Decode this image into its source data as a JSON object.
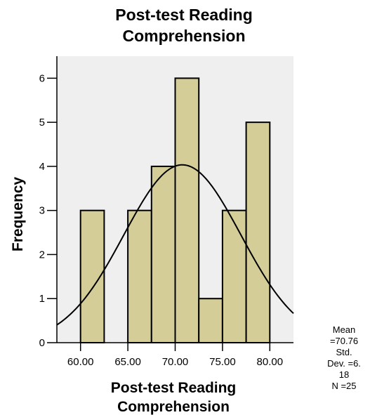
{
  "chart_data": {
    "type": "histogram",
    "title": [
      "Post-test Reading",
      "Comprehension"
    ],
    "xlabel": [
      "Post-test Reading",
      "Comprehension"
    ],
    "ylabel": "Frequency",
    "xlim": [
      57.5,
      82.5
    ],
    "ylim": [
      0,
      6.5
    ],
    "xticks": [
      60,
      65,
      70,
      75,
      80
    ],
    "xtick_labels": [
      "60.00",
      "65.00",
      "70.00",
      "75.00",
      "80.00"
    ],
    "yticks": [
      0,
      1,
      2,
      3,
      4,
      5,
      6
    ],
    "ytick_labels": [
      "0",
      "1",
      "2",
      "3",
      "4",
      "5",
      "6"
    ],
    "bins": [
      {
        "x0": 60,
        "x1": 62.5,
        "count": 3
      },
      {
        "x0": 62.5,
        "x1": 65,
        "count": 0
      },
      {
        "x0": 65,
        "x1": 67.5,
        "count": 3
      },
      {
        "x0": 67.5,
        "x1": 70,
        "count": 4
      },
      {
        "x0": 70,
        "x1": 72.5,
        "count": 6
      },
      {
        "x0": 72.5,
        "x1": 75,
        "count": 1
      },
      {
        "x0": 75,
        "x1": 77.5,
        "count": 3
      },
      {
        "x0": 77.5,
        "x1": 80,
        "count": 5
      }
    ],
    "normal_curve": {
      "mean": 70.76,
      "sd": 6.18,
      "n": 25,
      "bin_width": 2.5
    },
    "stats_lines": [
      "Mean",
      "=70.76",
      "Std.",
      "Dev. =6.",
      "18",
      "N =25"
    ],
    "grid": false,
    "colors": {
      "bar_fill": "#d4cd98",
      "bar_stroke": "#000000",
      "plot_bg": "#efefef",
      "curve": "#000000"
    }
  }
}
